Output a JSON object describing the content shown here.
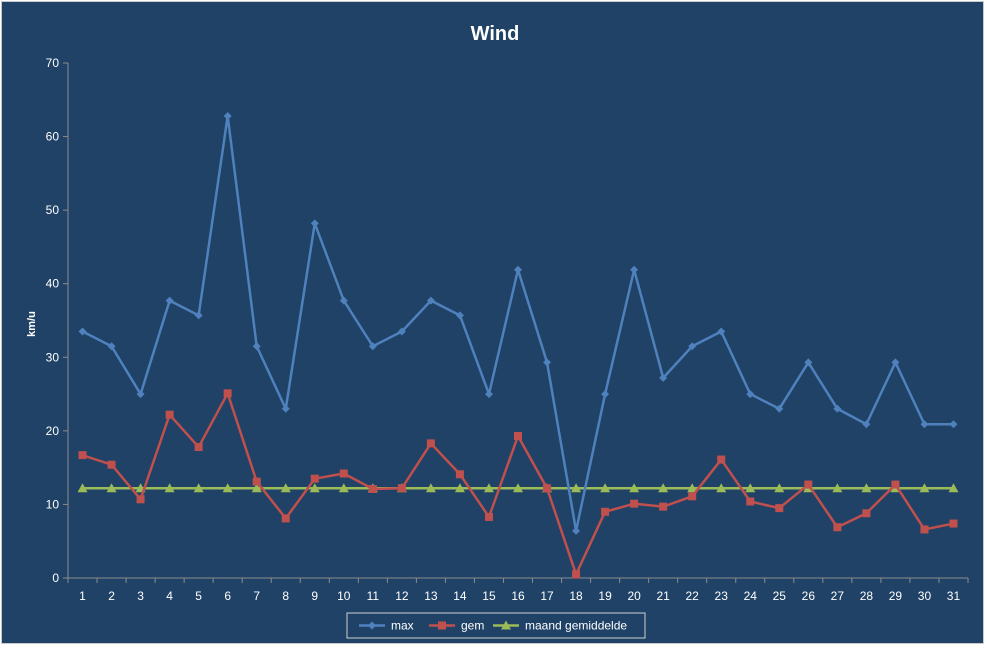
{
  "chart_data": {
    "type": "line",
    "title": "Wind",
    "xlabel": "",
    "ylabel": "km/u",
    "ylim": [
      0,
      70
    ],
    "yticks": [
      0,
      10,
      20,
      30,
      40,
      50,
      60,
      70
    ],
    "grid": false,
    "legend_position": "bottom",
    "categories": [
      "1",
      "2",
      "3",
      "4",
      "5",
      "6",
      "7",
      "8",
      "9",
      "10",
      "11",
      "12",
      "13",
      "14",
      "15",
      "16",
      "17",
      "18",
      "19",
      "20",
      "21",
      "22",
      "23",
      "24",
      "25",
      "26",
      "27",
      "28",
      "29",
      "30",
      "31"
    ],
    "series": [
      {
        "name": "max",
        "color": "#4f81bd",
        "marker": "diamond",
        "values": [
          33.5,
          31.5,
          25,
          37.7,
          35.7,
          62.8,
          31.5,
          23,
          48.2,
          37.7,
          31.5,
          33.5,
          37.7,
          35.7,
          25,
          41.9,
          29.3,
          6.4,
          25,
          41.9,
          27.2,
          31.5,
          33.5,
          25,
          23,
          29.3,
          23,
          20.9,
          29.3,
          20.9,
          20.9
        ]
      },
      {
        "name": "gem",
        "color": "#c0504d",
        "marker": "square",
        "values": [
          16.7,
          15.4,
          10.7,
          22.2,
          17.8,
          25.1,
          13.1,
          8.1,
          13.5,
          14.2,
          12.1,
          12.2,
          18.3,
          14.1,
          8.3,
          19.3,
          12.2,
          0.5,
          9,
          10.1,
          9.7,
          11.1,
          16.1,
          10.4,
          9.5,
          12.7,
          6.9,
          8.8,
          12.7,
          6.6,
          7.4
        ]
      },
      {
        "name": "maand gemiddelde",
        "color": "#9bbb59",
        "marker": "triangle",
        "values": [
          12.2,
          12.2,
          12.2,
          12.2,
          12.2,
          12.2,
          12.2,
          12.2,
          12.2,
          12.2,
          12.2,
          12.2,
          12.2,
          12.2,
          12.2,
          12.2,
          12.2,
          12.2,
          12.2,
          12.2,
          12.2,
          12.2,
          12.2,
          12.2,
          12.2,
          12.2,
          12.2,
          12.2,
          12.2,
          12.2,
          12.2
        ]
      }
    ]
  }
}
